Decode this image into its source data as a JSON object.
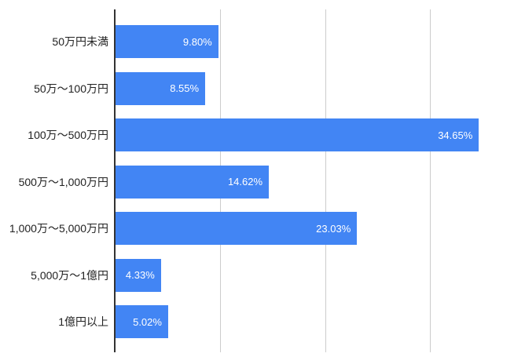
{
  "chart_data": {
    "type": "bar",
    "orientation": "horizontal",
    "title": "",
    "xlabel": "",
    "ylabel": "",
    "categories": [
      "50万円未満",
      "50万〜100万円",
      "100万〜500万円",
      "500万〜1,000万円",
      "1,000万〜5,000万円",
      "5,000万〜1億円",
      "1億円以上"
    ],
    "values": [
      9.8,
      8.55,
      34.65,
      14.62,
      23.03,
      4.33,
      5.02
    ],
    "value_labels": [
      "9.80%",
      "8.55%",
      "34.65%",
      "14.62%",
      "23.03%",
      "4.33%",
      "5.02%"
    ],
    "xlim": [
      0,
      38
    ],
    "gridlines_x": [
      0,
      10,
      20,
      30
    ],
    "grid": true,
    "legend": "none",
    "colors": {
      "bar": "#4285f4",
      "value_label": "#ffffff",
      "category_label": "#222222",
      "gridline": "#cccccc",
      "axis_line": "#333333",
      "background": "#ffffff"
    }
  }
}
